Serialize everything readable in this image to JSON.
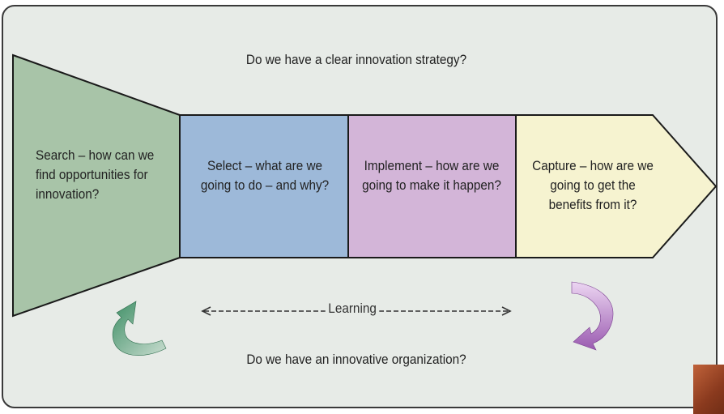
{
  "top_question": "Do we have a clear innovation strategy?",
  "bottom_question": "Do we have an innovative organization?",
  "stages": [
    {
      "name": "search",
      "text": "Search – how can we find opportunities for innovation?",
      "color": "#a8c4a8"
    },
    {
      "name": "select",
      "text": "Select – what are we going to do – and why?",
      "color": "#9db9d9"
    },
    {
      "name": "implement",
      "text": "Implement – how are we going to make it happen?",
      "color": "#d3b5d8"
    },
    {
      "name": "capture",
      "text": "Capture – how are we going to get the benefits from it?",
      "color": "#f6f3d0"
    }
  ],
  "learning_label": "Learning",
  "icons": {
    "left_cycle": "green-curved-arrow-icon",
    "right_cycle": "purple-curved-arrow-icon"
  },
  "colors": {
    "frame_bg": "#e7ebe7",
    "outline": "#1a1a1a",
    "green_arrow": "#4a9a72",
    "purple_arrow": "#9a5ab0"
  }
}
